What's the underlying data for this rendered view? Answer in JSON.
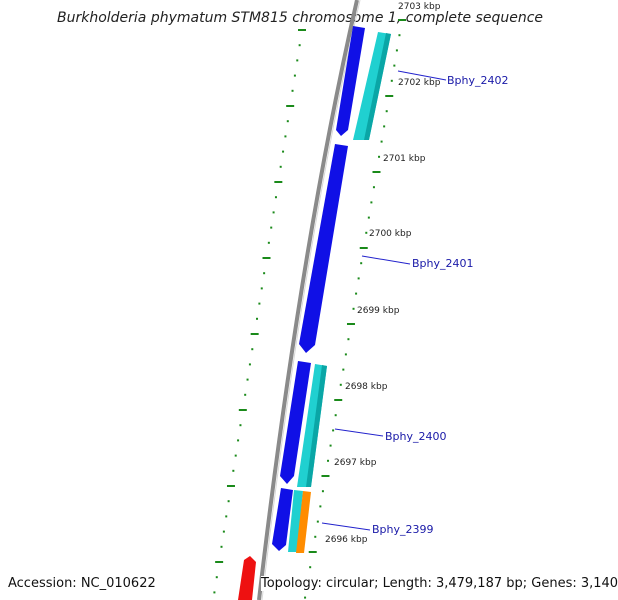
{
  "title": "Burkholderia phymatum STM815 chromosome 1, complete sequence",
  "accession_text": "Accession: NC_010622",
  "summary_text": "Topology: circular; Length: 3,479,187 bp; Genes: 3,140",
  "kbp_labels": [
    "2703 kbp",
    "2702 kbp",
    "2701 kbp",
    "2700 kbp",
    "2699 kbp",
    "2698 kbp",
    "2697 kbp",
    "2696 kbp"
  ],
  "gene_labels": [
    "Bphy_2402",
    "Bphy_2401",
    "Bphy_2400",
    "Bphy_2399"
  ],
  "colors": {
    "backbone": "#8a8a8a",
    "ticks": "#1a8a1a",
    "cds_blue": "#1010e6",
    "cds_cyan": "#20d0d0",
    "cds_orange": "#ff8c00",
    "cds_red": "#ee1111",
    "label_blue": "#1a1aa8",
    "callout": "#2222cc"
  }
}
